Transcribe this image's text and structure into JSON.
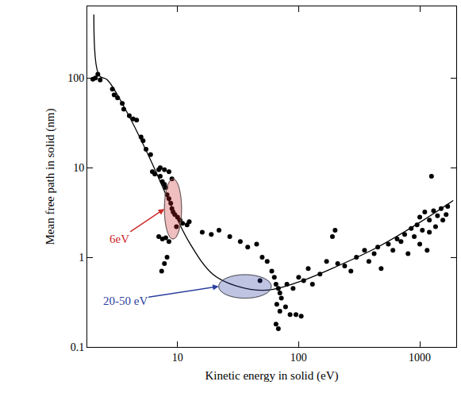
{
  "chart_data": {
    "type": "scatter",
    "x_label": "Kinetic energy in solid (eV)",
    "y_label": "Mean free path in solid (nm)",
    "log": true,
    "grid": false,
    "xlim": [
      1.8,
      2000
    ],
    "ylim": [
      0.1,
      630
    ],
    "xticks": [
      10,
      100,
      1000
    ],
    "yticks": [
      0.1,
      1,
      10,
      100
    ],
    "series": [
      {
        "type": "scatter",
        "marker": "circle",
        "color": "#000000",
        "x": [
          2.0,
          2.1,
          2.2,
          2.3,
          2.9,
          3.0,
          3.2,
          3.5,
          3.6,
          4.0,
          4.3,
          4.6,
          5.0,
          5.2,
          5.5,
          6.0,
          6.2,
          6.5,
          7.0,
          7.2,
          7.5,
          7.8,
          8.0,
          8.2,
          8.5,
          8.8,
          9.0,
          9.2,
          9.5,
          10,
          10.5,
          11,
          12,
          12.5,
          9.8,
          7.0,
          7.5,
          8.0,
          8.5,
          7.4,
          7.8,
          8.2,
          7.2,
          7.8,
          8.5,
          9.0,
          16,
          19,
          22,
          27,
          33,
          38,
          45,
          50,
          55,
          48,
          60,
          63,
          65,
          68,
          70,
          72,
          66,
          70,
          65,
          68,
          78,
          85,
          95,
          105,
          80,
          90,
          100,
          110,
          120,
          130,
          150,
          170,
          190,
          200,
          210,
          240,
          270,
          300,
          350,
          380,
          420,
          450,
          480,
          550,
          600,
          650,
          700,
          750,
          800,
          850,
          900,
          950,
          1000,
          1000,
          1050,
          1100,
          1150,
          1200,
          1200,
          1250,
          1300,
          1350,
          1400,
          1500,
          1550,
          1650,
          1700
        ],
        "values": [
          97,
          100,
          110,
          95,
          75,
          65,
          60,
          52,
          45,
          38,
          35,
          34,
          22,
          20,
          16,
          14,
          9,
          8.5,
          9.5,
          8,
          7,
          6.5,
          6,
          5,
          4.5,
          4,
          3.5,
          3.2,
          3,
          2.8,
          2.6,
          2.4,
          2.3,
          2.5,
          2.2,
          1.7,
          1.6,
          1.65,
          1.5,
          0.7,
          0.85,
          1.0,
          10,
          9.5,
          9,
          7.5,
          1.9,
          1.8,
          2.0,
          1.7,
          1.5,
          1.3,
          1.4,
          1.0,
          0.9,
          0.55,
          0.7,
          0.6,
          0.5,
          0.45,
          0.4,
          0.35,
          0.3,
          0.25,
          0.18,
          0.16,
          0.28,
          0.23,
          0.23,
          0.22,
          0.5,
          0.45,
          0.6,
          0.55,
          0.75,
          0.5,
          0.65,
          0.9,
          1.7,
          2.0,
          0.85,
          0.8,
          0.7,
          1.0,
          1.2,
          0.9,
          1.1,
          1.3,
          0.75,
          1.4,
          1.2,
          1.6,
          1.5,
          1.8,
          1.1,
          2.1,
          1.7,
          2.3,
          1.4,
          2.8,
          2.0,
          3.2,
          1.2,
          2.6,
          1.9,
          8.0,
          3.3,
          2.2,
          2.9,
          3.5,
          2.6,
          3.0,
          3.7
        ]
      },
      {
        "type": "line",
        "line_style": "solid",
        "color": "#000000",
        "x": [
          2.04,
          2.26,
          2.62,
          3.81,
          5.94,
          8.6,
          12.5,
          19.5,
          30.5,
          55,
          100,
          210,
          440,
          1000,
          1890
        ],
        "values": [
          511,
          106,
          96,
          42,
          12.5,
          4.1,
          1.47,
          0.65,
          0.48,
          0.43,
          0.53,
          0.8,
          1.28,
          2.45,
          4.3
        ]
      }
    ],
    "annotations": [
      {
        "text": "6eV",
        "color": "#cc2a2a",
        "x": [
          7.8,
          10.8
        ],
        "y": [
          1.6,
          7.5
        ]
      },
      {
        "text": "20-50 eV",
        "color": "#2b3f9e",
        "x": [
          21.9,
          59.5
        ],
        "y": [
          0.35,
          0.64
        ]
      }
    ]
  }
}
